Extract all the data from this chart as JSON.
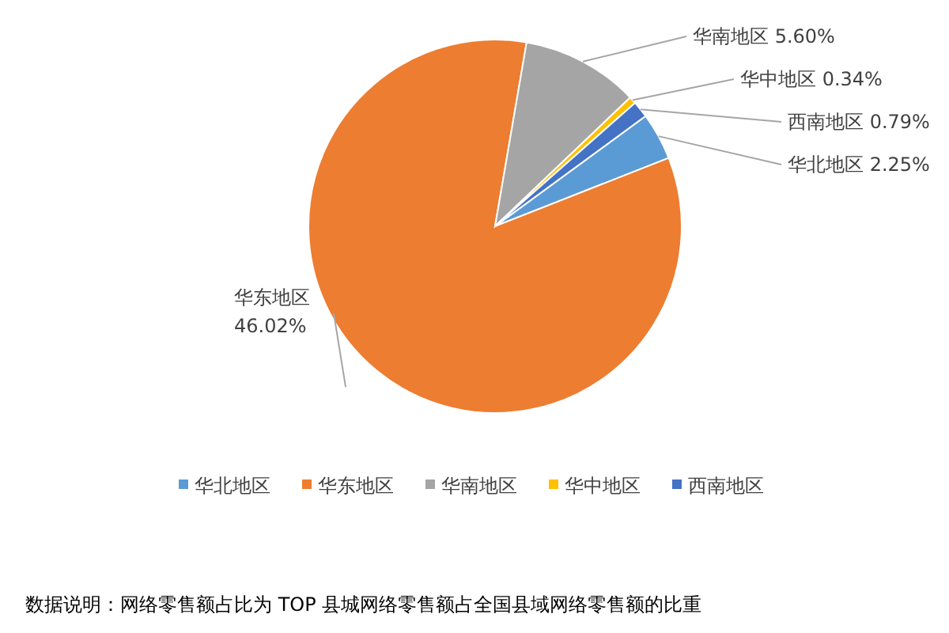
{
  "chart_data": {
    "type": "pie",
    "categories": [
      "华北地区",
      "华东地区",
      "华南地区",
      "华中地区",
      "西南地区"
    ],
    "values": [
      2.25,
      46.02,
      5.6,
      0.34,
      0.79
    ],
    "value_labels": [
      "2.25%",
      "46.02%",
      "5.60%",
      "0.34%",
      "0.79%"
    ],
    "colors": [
      "#5b9bd5",
      "#ed7d31",
      "#a5a5a5",
      "#ffc000",
      "#4472c4"
    ],
    "legend": "bottom",
    "annotations": [
      "数据说明：网络零售额占比为 TOP 县城网络零售额占全国县域网络零售额的比重"
    ]
  }
}
